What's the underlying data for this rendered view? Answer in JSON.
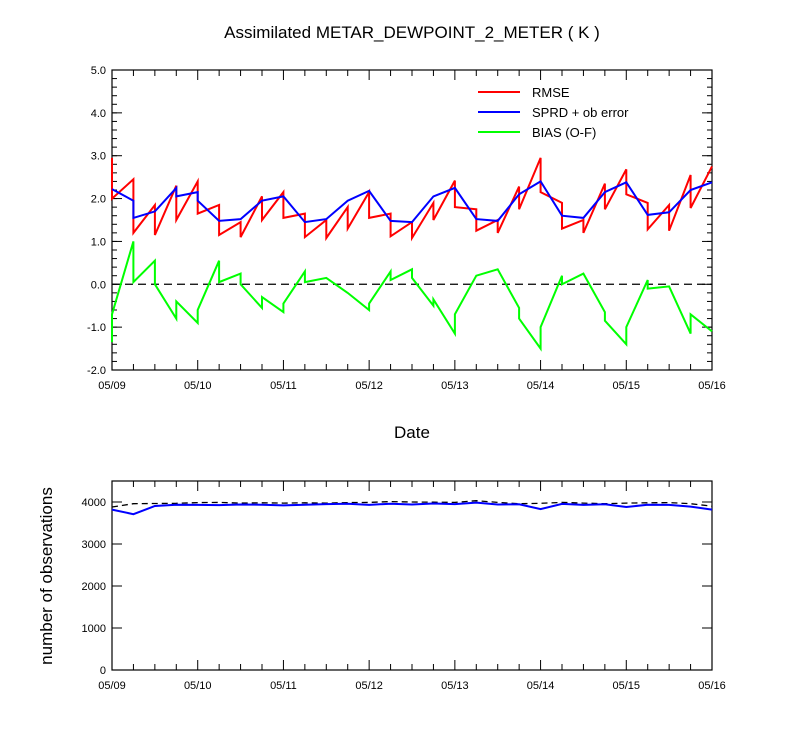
{
  "chart_data": [
    {
      "type": "line",
      "title": "Assimilated METAR_DEWPOINT_2_METER ( K )",
      "xlabel": "Date",
      "ylabel": "",
      "xlim": [
        0,
        7
      ],
      "ylim": [
        -2.0,
        5.0
      ],
      "yticks": [
        "5.0",
        "4.0",
        "3.0",
        "2.0",
        "1.0",
        "0.0",
        "-1.0",
        "-2.0"
      ],
      "x_tick_labels": [
        "05/09",
        "05/10",
        "05/11",
        "05/12",
        "05/13",
        "05/14",
        "05/15",
        "05/16"
      ],
      "zero_reference_line": true,
      "legend_position": "top-right",
      "series": [
        {
          "name": "RMSE",
          "color": "#ff0000",
          "points": [
            [
              0.0,
              2.95
            ],
            [
              0.0,
              2.0
            ],
            [
              0.25,
              2.45
            ],
            [
              0.25,
              1.2
            ],
            [
              0.5,
              1.85
            ],
            [
              0.5,
              1.15
            ],
            [
              0.75,
              2.3
            ],
            [
              0.75,
              1.5
            ],
            [
              1.0,
              2.4
            ],
            [
              1.0,
              1.65
            ],
            [
              1.25,
              1.85
            ],
            [
              1.25,
              1.15
            ],
            [
              1.5,
              1.45
            ],
            [
              1.5,
              1.1
            ],
            [
              1.75,
              2.05
            ],
            [
              1.75,
              1.5
            ],
            [
              2.0,
              2.15
            ],
            [
              2.0,
              1.55
            ],
            [
              2.25,
              1.65
            ],
            [
              2.25,
              1.1
            ],
            [
              2.5,
              1.5
            ],
            [
              2.5,
              1.08
            ],
            [
              2.75,
              1.8
            ],
            [
              2.75,
              1.3
            ],
            [
              3.0,
              2.15
            ],
            [
              3.0,
              1.55
            ],
            [
              3.25,
              1.65
            ],
            [
              3.25,
              1.12
            ],
            [
              3.5,
              1.45
            ],
            [
              3.5,
              1.08
            ],
            [
              3.75,
              1.9
            ],
            [
              3.75,
              1.5
            ],
            [
              4.0,
              2.42
            ],
            [
              4.0,
              1.8
            ],
            [
              4.25,
              1.75
            ],
            [
              4.25,
              1.25
            ],
            [
              4.5,
              1.5
            ],
            [
              4.5,
              1.2
            ],
            [
              4.75,
              2.28
            ],
            [
              4.75,
              1.75
            ],
            [
              5.0,
              2.95
            ],
            [
              5.0,
              2.15
            ],
            [
              5.25,
              1.9
            ],
            [
              5.25,
              1.3
            ],
            [
              5.5,
              1.5
            ],
            [
              5.5,
              1.2
            ],
            [
              5.75,
              2.35
            ],
            [
              5.75,
              1.75
            ],
            [
              6.0,
              2.68
            ],
            [
              6.0,
              2.1
            ],
            [
              6.25,
              1.9
            ],
            [
              6.25,
              1.28
            ],
            [
              6.5,
              1.85
            ],
            [
              6.5,
              1.25
            ],
            [
              6.75,
              2.55
            ],
            [
              6.75,
              1.78
            ],
            [
              7.0,
              2.75
            ]
          ]
        },
        {
          "name": "SPRD + ob error",
          "color": "#0000ff",
          "points": [
            [
              0.0,
              2.22
            ],
            [
              0.25,
              1.95
            ],
            [
              0.25,
              1.55
            ],
            [
              0.5,
              1.7
            ],
            [
              0.75,
              2.25
            ],
            [
              0.75,
              2.05
            ],
            [
              1.0,
              2.15
            ],
            [
              1.0,
              1.95
            ],
            [
              1.25,
              1.48
            ],
            [
              1.5,
              1.52
            ],
            [
              1.75,
              1.95
            ],
            [
              2.0,
              2.05
            ],
            [
              2.25,
              1.45
            ],
            [
              2.5,
              1.52
            ],
            [
              2.75,
              1.95
            ],
            [
              3.0,
              2.18
            ],
            [
              3.25,
              1.48
            ],
            [
              3.5,
              1.45
            ],
            [
              3.75,
              2.05
            ],
            [
              4.0,
              2.25
            ],
            [
              4.25,
              1.52
            ],
            [
              4.5,
              1.48
            ],
            [
              4.75,
              2.1
            ],
            [
              5.0,
              2.4
            ],
            [
              5.25,
              1.6
            ],
            [
              5.5,
              1.55
            ],
            [
              5.75,
              2.15
            ],
            [
              6.0,
              2.38
            ],
            [
              6.25,
              1.62
            ],
            [
              6.5,
              1.68
            ],
            [
              6.75,
              2.2
            ],
            [
              7.0,
              2.38
            ]
          ]
        },
        {
          "name": "BIAS (O-F)",
          "color": "#00ff00",
          "points": [
            [
              0.0,
              -1.35
            ],
            [
              0.0,
              -0.7
            ],
            [
              0.25,
              1.0
            ],
            [
              0.25,
              0.05
            ],
            [
              0.5,
              0.55
            ],
            [
              0.5,
              0.0
            ],
            [
              0.75,
              -0.8
            ],
            [
              0.75,
              -0.4
            ],
            [
              1.0,
              -0.9
            ],
            [
              1.0,
              -0.6
            ],
            [
              1.25,
              0.55
            ],
            [
              1.25,
              0.05
            ],
            [
              1.5,
              0.25
            ],
            [
              1.5,
              0.0
            ],
            [
              1.75,
              -0.55
            ],
            [
              1.75,
              -0.3
            ],
            [
              2.0,
              -0.65
            ],
            [
              2.0,
              -0.45
            ],
            [
              2.25,
              0.3
            ],
            [
              2.25,
              0.05
            ],
            [
              2.5,
              0.15
            ],
            [
              2.75,
              -0.2
            ],
            [
              3.0,
              -0.6
            ],
            [
              3.0,
              -0.45
            ],
            [
              3.25,
              0.3
            ],
            [
              3.25,
              0.1
            ],
            [
              3.5,
              0.35
            ],
            [
              3.5,
              0.15
            ],
            [
              3.75,
              -0.5
            ],
            [
              3.75,
              -0.35
            ],
            [
              4.0,
              -1.15
            ],
            [
              4.0,
              -0.7
            ],
            [
              4.25,
              0.2
            ],
            [
              4.5,
              0.35
            ],
            [
              4.75,
              -0.55
            ],
            [
              4.75,
              -0.8
            ],
            [
              5.0,
              -1.5
            ],
            [
              5.0,
              -1.0
            ],
            [
              5.25,
              0.2
            ],
            [
              5.25,
              0.0
            ],
            [
              5.5,
              0.25
            ],
            [
              5.75,
              -0.65
            ],
            [
              5.75,
              -0.85
            ],
            [
              6.0,
              -1.4
            ],
            [
              6.0,
              -1.0
            ],
            [
              6.25,
              0.1
            ],
            [
              6.25,
              -0.1
            ],
            [
              6.5,
              -0.05
            ],
            [
              6.75,
              -1.15
            ],
            [
              6.75,
              -0.7
            ],
            [
              7.0,
              -1.1
            ]
          ]
        }
      ]
    },
    {
      "type": "line",
      "title": "",
      "xlabel": "",
      "ylabel": "number of observations",
      "xlim": [
        0,
        7
      ],
      "ylim": [
        0,
        4500
      ],
      "yticks": [
        "4000",
        "3000",
        "2000",
        "1000",
        "0"
      ],
      "x_tick_labels": [
        "05/09",
        "05/10",
        "05/11",
        "05/12",
        "05/13",
        "05/14",
        "05/15",
        "05/16"
      ],
      "series": [
        {
          "name": "",
          "style": "dashed",
          "color": "#000000",
          "points": [
            [
              0.0,
              3880
            ],
            [
              0.25,
              3960
            ],
            [
              0.5,
              3965
            ],
            [
              0.75,
              3970
            ],
            [
              1.0,
              3985
            ],
            [
              1.25,
              3990
            ],
            [
              1.5,
              3975
            ],
            [
              1.75,
              3980
            ],
            [
              2.0,
              3975
            ],
            [
              2.25,
              3980
            ],
            [
              2.5,
              3975
            ],
            [
              2.75,
              3985
            ],
            [
              3.0,
              3990
            ],
            [
              3.25,
              4010
            ],
            [
              3.5,
              4000
            ],
            [
              3.75,
              3995
            ],
            [
              4.0,
              3990
            ],
            [
              4.25,
              4030
            ],
            [
              4.5,
              3990
            ],
            [
              4.75,
              3960
            ],
            [
              5.0,
              3970
            ],
            [
              5.25,
              3990
            ],
            [
              5.5,
              3975
            ],
            [
              5.75,
              3960
            ],
            [
              6.0,
              3975
            ],
            [
              6.25,
              3980
            ],
            [
              6.5,
              3985
            ],
            [
              6.75,
              3960
            ],
            [
              7.0,
              3900
            ]
          ]
        },
        {
          "name": "",
          "style": "solid",
          "color": "#0000ff",
          "points": [
            [
              0.0,
              3820
            ],
            [
              0.25,
              3710
            ],
            [
              0.5,
              3905
            ],
            [
              0.75,
              3935
            ],
            [
              1.0,
              3930
            ],
            [
              1.25,
              3925
            ],
            [
              1.5,
              3940
            ],
            [
              1.75,
              3935
            ],
            [
              2.0,
              3920
            ],
            [
              2.25,
              3935
            ],
            [
              2.5,
              3950
            ],
            [
              2.75,
              3960
            ],
            [
              3.0,
              3930
            ],
            [
              3.25,
              3960
            ],
            [
              3.5,
              3940
            ],
            [
              3.75,
              3965
            ],
            [
              4.0,
              3950
            ],
            [
              4.25,
              3985
            ],
            [
              4.5,
              3940
            ],
            [
              4.75,
              3945
            ],
            [
              5.0,
              3830
            ],
            [
              5.25,
              3955
            ],
            [
              5.5,
              3930
            ],
            [
              5.75,
              3945
            ],
            [
              6.0,
              3880
            ],
            [
              6.25,
              3935
            ],
            [
              6.5,
              3930
            ],
            [
              6.75,
              3890
            ],
            [
              7.0,
              3820
            ]
          ]
        }
      ]
    }
  ]
}
